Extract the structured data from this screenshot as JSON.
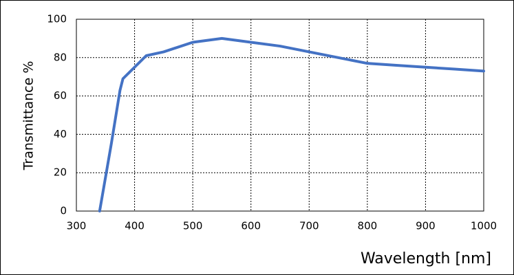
{
  "chart_data": {
    "type": "line",
    "x_label": "Wavelength [nm]",
    "y_label": "Transmittance %",
    "x": [
      340,
      360,
      375,
      380,
      390,
      400,
      420,
      450,
      500,
      550,
      600,
      650,
      700,
      750,
      800,
      850,
      900,
      950,
      1000
    ],
    "series": [
      {
        "name": "Transmittance",
        "color": "#4472c4",
        "values": [
          0,
          35,
          63,
          69,
          72,
          75,
          81,
          83,
          88,
          90,
          88,
          86,
          83,
          80,
          77,
          76,
          75,
          74,
          73
        ]
      }
    ],
    "xlim": [
      300,
      1000
    ],
    "xticks": [
      300,
      400,
      500,
      600,
      700,
      800,
      900,
      1000
    ],
    "ylim": [
      0,
      100
    ],
    "yticks": [
      0,
      20,
      40,
      60,
      80,
      100
    ],
    "grid": true
  }
}
